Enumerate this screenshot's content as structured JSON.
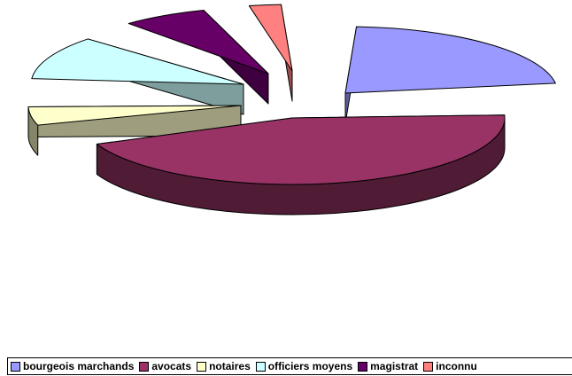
{
  "chart_data": {
    "type": "pie",
    "style": "3d-exploded",
    "categories": [
      "bourgeois marchands",
      "avocats",
      "notaires",
      "officiers moyens",
      "magistrat",
      "inconnu"
    ],
    "values": [
      23,
      45,
      6,
      12,
      8,
      4
    ],
    "colors": [
      "#9999ff",
      "#993366",
      "#ffffcc",
      "#ccffff",
      "#660066",
      "#ff8080"
    ],
    "title": "",
    "legend_position": "bottom"
  }
}
